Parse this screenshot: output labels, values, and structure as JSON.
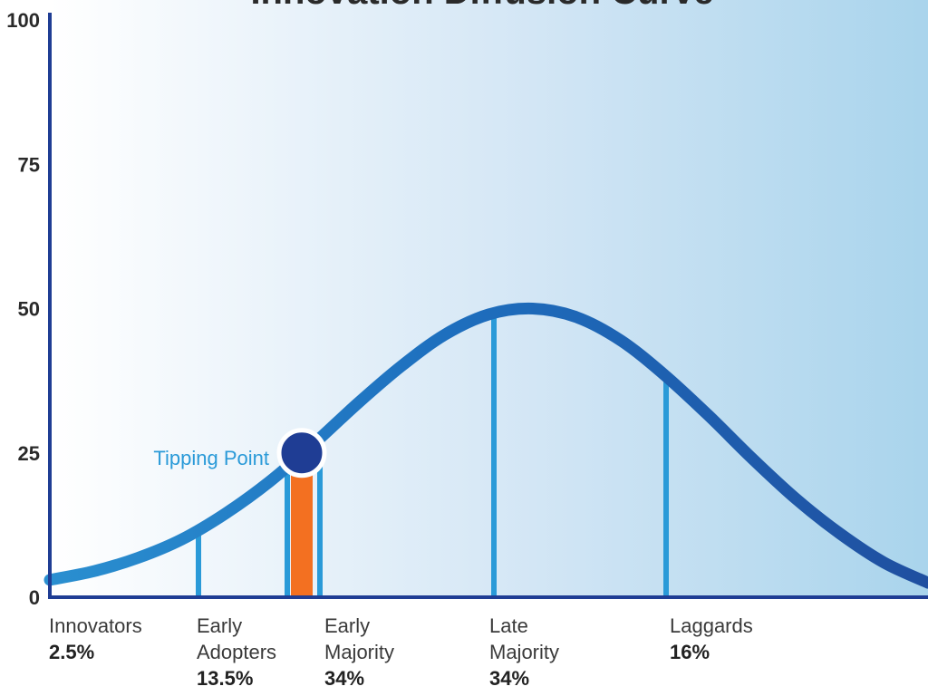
{
  "chart_data": {
    "type": "line",
    "title": "Innovation Diffusion Curve",
    "ylim": [
      0,
      100
    ],
    "yticks": [
      "0",
      "25",
      "50",
      "75",
      "100"
    ],
    "grid": false,
    "curve": {
      "x": [
        0,
        1,
        2,
        3,
        4,
        5,
        6,
        7,
        8,
        9,
        10,
        11,
        12,
        13,
        14,
        15,
        16,
        17,
        18,
        19,
        20
      ],
      "y": [
        3,
        4.5,
        6.8,
        10,
        14.5,
        20,
        26.5,
        33.5,
        40,
        45.5,
        49,
        50,
        48.5,
        44.5,
        38.5,
        31.5,
        24,
        17,
        11,
        6,
        2.5
      ]
    },
    "categories": [
      {
        "label_lines": [
          "Innovators"
        ],
        "pct": "2.5%"
      },
      {
        "label_lines": [
          "Early",
          "Adopters"
        ],
        "pct": "13.5%"
      },
      {
        "label_lines": [
          "Early",
          "Majority"
        ],
        "pct": "34%"
      },
      {
        "label_lines": [
          "Late",
          "Majority"
        ],
        "pct": "34%"
      },
      {
        "label_lines": [
          "Laggards"
        ],
        "pct": "16%"
      }
    ],
    "annotation": {
      "text": "Tipping Point",
      "y": 25
    },
    "colors": {
      "curve_light": "#2a8fd0",
      "curve_dark": "#1f4fa0",
      "axis": "#1f3d94",
      "divider": "#2a9ad8",
      "tipping_bar": "#f37021",
      "tipping_dot": "#1f3d94",
      "annotation_text": "#2a9ad8",
      "background_start": "#ffffff",
      "background_end": "#a9d4ec"
    }
  }
}
